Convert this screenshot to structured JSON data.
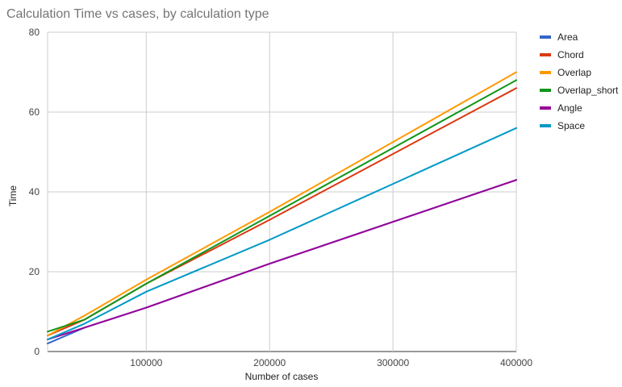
{
  "chart_data": {
    "type": "line",
    "title": "Calculation Time vs cases, by calculation type",
    "xlabel": "Number of cases",
    "ylabel": "Time",
    "xlim": [
      20000,
      400000
    ],
    "ylim": [
      0,
      80
    ],
    "x_ticks": [
      "100000",
      "200000",
      "300000",
      "400000"
    ],
    "y_ticks": [
      "0",
      "20",
      "40",
      "60",
      "80"
    ],
    "grid": true,
    "legend_position": "right",
    "x": [
      20000,
      50000,
      100000,
      200000,
      400000
    ],
    "series": [
      {
        "name": "Area",
        "color": "#3366cc",
        "values": [
          2,
          6,
          11,
          22,
          43
        ]
      },
      {
        "name": "Chord",
        "color": "#dc3912",
        "values": [
          4,
          8,
          17,
          33,
          66
        ]
      },
      {
        "name": "Overlap",
        "color": "#ff9900",
        "values": [
          4,
          9,
          18,
          35,
          70
        ]
      },
      {
        "name": "Overlap_short",
        "color": "#109618",
        "values": [
          5,
          8,
          17,
          34,
          68
        ]
      },
      {
        "name": "Angle",
        "color": "#990099",
        "values": [
          3,
          6,
          11,
          22,
          43
        ]
      },
      {
        "name": "Space",
        "color": "#0099c6",
        "values": [
          3,
          7,
          15,
          28,
          56
        ]
      }
    ]
  }
}
